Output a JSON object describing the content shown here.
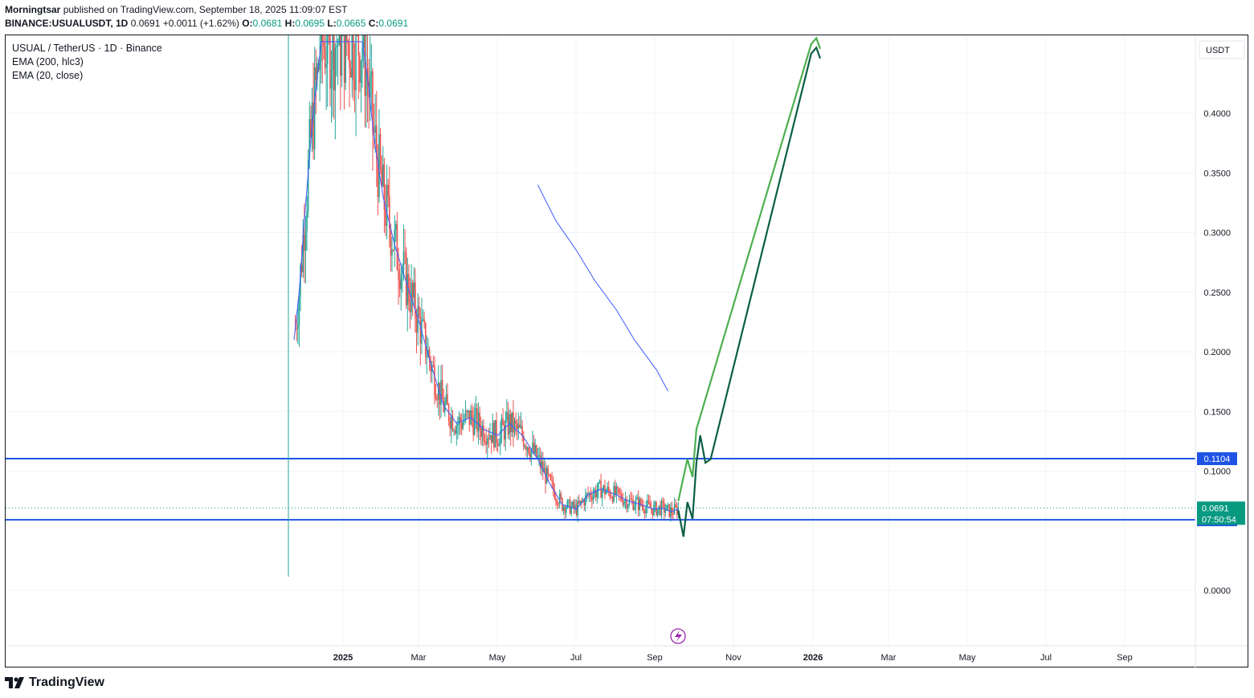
{
  "header": {
    "author": "Morningtsar",
    "published_text": "published on TradingView.com, September 18, 2025 11:09:07 EST",
    "symbol": "BINANCE:USUALUSDT, 1D",
    "last": "0.0691",
    "change": "+0.0011 (+1.62%)",
    "o_label": "O:",
    "o_value": "0.0681",
    "h_label": "H:",
    "h_value": "0.0695",
    "l_label": "L:",
    "l_value": "0.0665",
    "c_label": "C:",
    "c_value": "0.0691"
  },
  "legend": {
    "title": "USUAL / TetherUS · 1D · Binance",
    "ind1": "EMA (200, hlc3)",
    "ind2": "EMA (20, close)"
  },
  "brand": {
    "name": "TradingView"
  },
  "colors": {
    "up": "#26a69a",
    "down": "#ef5350",
    "ema": "#3d5afe",
    "hline": "#1e53e5",
    "arrow_light": "#4caf50",
    "arrow_dark": "#0b5e46",
    "price_tag": "#089981"
  },
  "chart_data": {
    "type": "line",
    "title": "USUAL / TetherUS · 1D · Binance",
    "currency": "USDT",
    "ylim": [
      -0.045,
      0.46
    ],
    "y_ticks": [
      "0.4000",
      "0.3500",
      "0.3000",
      "0.2500",
      "0.2000",
      "0.1500",
      "0.1000",
      "0.0000"
    ],
    "x_ticks": [
      "2025",
      "Mar",
      "May",
      "Jul",
      "Sep",
      "Nov",
      "2026",
      "Mar",
      "May",
      "Jul",
      "Sep"
    ],
    "series": [
      {
        "name": "EMA (20, close)",
        "x": [
          "2024-11-24",
          "2024-11-28",
          "2024-12-02",
          "2024-12-08",
          "2024-12-15",
          "2024-12-25",
          "2025-01-10",
          "2025-01-16",
          "2025-01-20",
          "2025-01-25",
          "2025-02-01",
          "2025-02-10",
          "2025-02-20",
          "2025-03-01",
          "2025-03-10",
          "2025-03-20",
          "2025-03-30",
          "2025-04-10",
          "2025-04-20",
          "2025-05-01",
          "2025-05-10",
          "2025-05-20",
          "2025-06-01",
          "2025-06-10",
          "2025-06-20",
          "2025-07-01",
          "2025-07-10",
          "2025-07-20",
          "2025-08-01",
          "2025-08-10",
          "2025-08-20",
          "2025-08-30",
          "2025-09-05",
          "2025-09-12",
          "2025-09-18"
        ],
        "y": [
          0.21,
          0.25,
          0.31,
          0.39,
          0.46,
          0.46,
          0.46,
          0.46,
          0.43,
          0.38,
          0.33,
          0.29,
          0.255,
          0.225,
          0.19,
          0.155,
          0.14,
          0.145,
          0.135,
          0.13,
          0.14,
          0.13,
          0.11,
          0.09,
          0.072,
          0.068,
          0.08,
          0.085,
          0.08,
          0.075,
          0.072,
          0.068,
          0.069,
          0.066,
          0.068
        ]
      },
      {
        "name": "EMA (200, hlc3)",
        "x": [
          "2025-06-01",
          "2025-06-15",
          "2025-07-01",
          "2025-07-15",
          "2025-08-01",
          "2025-08-15",
          "2025-09-01",
          "2025-09-10"
        ],
        "y": [
          0.34,
          0.31,
          0.285,
          0.26,
          0.235,
          0.21,
          0.185,
          0.167
        ]
      },
      {
        "name": "Projection A",
        "x": [
          "2025-09-18",
          "2025-09-22",
          "2025-09-25",
          "2025-09-29",
          "2025-10-02",
          "2025-10-05",
          "2025-10-09",
          "2025-10-13",
          "2025-12-30",
          "2026-01-03",
          "2026-01-06"
        ],
        "y": [
          0.067,
          0.045,
          0.074,
          0.06,
          0.107,
          0.13,
          0.107,
          0.11,
          0.45,
          0.455,
          0.446
        ]
      },
      {
        "name": "Projection B",
        "x": [
          "2025-09-18",
          "2025-09-22",
          "2025-09-25",
          "2025-09-29",
          "2025-10-02",
          "2025-12-30",
          "2026-01-03",
          "2026-01-06"
        ],
        "y": [
          0.075,
          0.095,
          0.11,
          0.095,
          0.135,
          0.458,
          0.463,
          0.454
        ]
      }
    ],
    "horizontal_lines": [
      {
        "value": 0.1104,
        "label": "0.1104"
      },
      {
        "value": 0.0592,
        "label": "0.0592"
      }
    ],
    "last_price": {
      "value": 0.0691,
      "label": "0.0691",
      "countdown": "07:50:54"
    }
  }
}
